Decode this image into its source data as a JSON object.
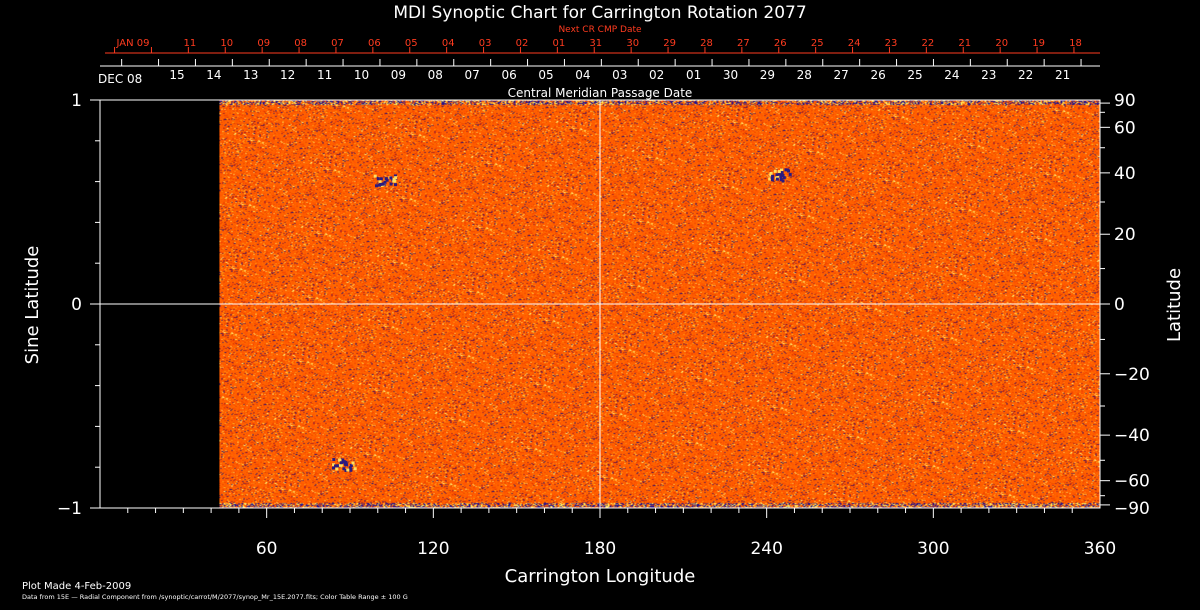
{
  "chart_data": {
    "type": "heatmap",
    "title": "MDI Synoptic Chart for Carrington Rotation 2077",
    "xlabel": "Carrington Longitude",
    "ylabel_left": "Sine Latitude",
    "ylabel_right": "Latitude",
    "xlim": [
      0,
      360
    ],
    "ylim": [
      -1,
      1
    ],
    "x_ticks": [
      60,
      120,
      180,
      240,
      300,
      360
    ],
    "y_ticks_left": [
      -1,
      0,
      1
    ],
    "y_ticks_right": [
      -90,
      -60,
      -40,
      -20,
      0,
      20,
      40,
      60,
      90
    ],
    "y_tick_labels_right": [
      "−90",
      "−60",
      "−40",
      "−20",
      "0",
      "20",
      "40",
      "60",
      "90"
    ],
    "y_tick_labels_left": [
      "−1",
      "0",
      "1"
    ],
    "data_start_longitude": 43,
    "crosshair": {
      "x": 180,
      "y": 0
    },
    "top_axis_current": {
      "start_label": "DEC 08",
      "labels": [
        "15",
        "14",
        "13",
        "12",
        "11",
        "10",
        "09",
        "08",
        "07",
        "06",
        "05",
        "04",
        "03",
        "02",
        "01",
        "30",
        "29",
        "28",
        "27",
        "26",
        "25",
        "24",
        "23",
        "22",
        "21"
      ],
      "caption": "Central Meridian Passage Date"
    },
    "top_axis_next": {
      "title": "Next CR CMP Date",
      "labels": [
        "JAN 09",
        "11",
        "10",
        "09",
        "08",
        "07",
        "06",
        "05",
        "04",
        "03",
        "02",
        "01",
        "31",
        "30",
        "29",
        "28",
        "27",
        "26",
        "25",
        "24",
        "23",
        "22",
        "21",
        "20",
        "19",
        "18"
      ]
    },
    "active_regions": [
      {
        "longitude": 103,
        "latitude": 37
      },
      {
        "longitude": 245,
        "latitude": 39
      },
      {
        "longitude": 88,
        "latitude": -52
      }
    ],
    "colors": {
      "background": "#000000",
      "field": "#ff5500",
      "positive": "#ffe060",
      "negative": "#2a1a80",
      "axis": "#ffffff",
      "next_axis": "#ff3b1f"
    }
  },
  "footer": {
    "plot_made": "Plot Made   4-Feb-2009",
    "data_note": "Data from 15E — Radial Component from /synoptic/carrot/M/2077/synop_Mr_15E.2077.fits; Color Table Range ± 100 G"
  }
}
